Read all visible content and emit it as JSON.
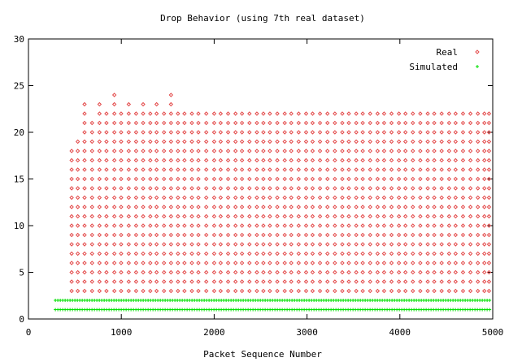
{
  "chart_data": {
    "type": "scatter",
    "title": "Drop Behavior (using 7th real dataset)",
    "xlabel": "Packet Sequence Number",
    "ylabel": "",
    "xlim": [
      0,
      5000
    ],
    "ylim": [
      0,
      30
    ],
    "xticks": [
      0,
      1000,
      2000,
      3000,
      4000,
      5000
    ],
    "yticks": [
      0,
      5,
      10,
      15,
      20,
      25,
      30
    ],
    "grid": false,
    "legend_position": "top-right",
    "series": [
      {
        "name": "Real",
        "marker": "diamond",
        "color": "#e34a4a",
        "column_x": [
          465,
          531,
          604,
          685,
          765,
          840,
          925,
          998,
          1080,
          1159,
          1235,
          1312,
          1380,
          1460,
          1535,
          1610,
          1680,
          1760,
          1830,
          1915,
          2000,
          2070,
          2150,
          2230,
          2300,
          2380,
          2460,
          2530,
          2600,
          2680,
          2760,
          2830,
          2910,
          2990,
          3060,
          3140,
          3220,
          3300,
          3380,
          3450,
          3530,
          3600,
          3680,
          3760,
          3830,
          3910,
          3990,
          4060,
          4140,
          4220,
          4300,
          4370,
          4450,
          4530,
          4600,
          4680,
          4760,
          4840,
          4910,
          4960
        ],
        "column_max_y": [
          18,
          19,
          23,
          21,
          23,
          22,
          24,
          22,
          23,
          22,
          23,
          22,
          23,
          22,
          24,
          22,
          22,
          22,
          22,
          22,
          22,
          22,
          22,
          22,
          22,
          22,
          22,
          22,
          22,
          22,
          22,
          22,
          22,
          22,
          22,
          22,
          22,
          22,
          22,
          22,
          22,
          22,
          22,
          22,
          22,
          22,
          22,
          22,
          22,
          22,
          22,
          22,
          22,
          22,
          22,
          22,
          22,
          22,
          22,
          22
        ],
        "column_min_y": 3,
        "y_step": 1
      },
      {
        "name": "Simulated",
        "marker": "plus",
        "color": "#00e000",
        "x_start": 290,
        "x_end": 4980,
        "y_values": [
          1,
          2
        ]
      }
    ]
  }
}
